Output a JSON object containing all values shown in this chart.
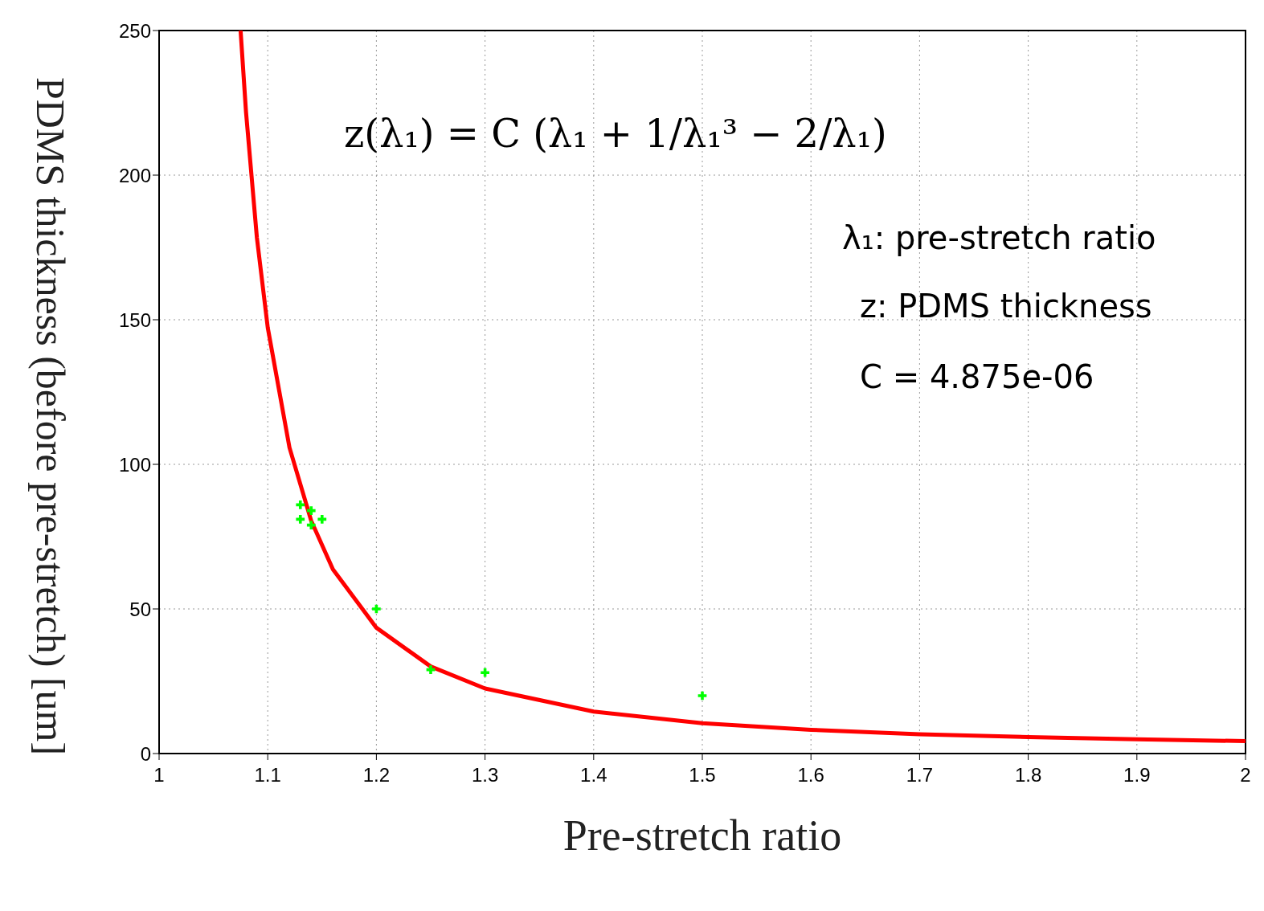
{
  "chart_data": {
    "type": "scatter",
    "xlabel": "Pre-stretch ratio",
    "ylabel": "PDMS thickness (before pre-stretch) [um]",
    "xlim": [
      1,
      2
    ],
    "xticks": [
      1,
      1.1,
      1.2,
      1.3,
      1.4,
      1.5,
      1.6,
      1.7,
      1.8,
      1.9,
      2
    ],
    "ylim": [
      0,
      250
    ],
    "yticks": [
      0,
      50,
      100,
      150,
      200,
      250
    ],
    "grid": true,
    "series": [
      {
        "type": "line",
        "color": "#ff0000",
        "marker": "none",
        "line_style": "solid",
        "x": [
          1.075,
          1.08,
          1.09,
          1.1,
          1.12,
          1.14,
          1.16,
          1.2,
          1.25,
          1.3,
          1.4,
          1.5,
          1.6,
          1.7,
          1.8,
          1.9,
          2
        ],
        "values": [
          250,
          221.8,
          178.4,
          147.3,
          105.8,
          80.5,
          63.7,
          43.5,
          30.1,
          22.5,
          14.5,
          10.5,
          8.2,
          6.7,
          5.7,
          4.9,
          4.3
        ]
      },
      {
        "type": "scatter",
        "color": "#00ff00",
        "marker": "cross",
        "x": [
          1.13,
          1.13,
          1.14,
          1.14,
          1.15,
          1.2,
          1.25,
          1.3,
          1.5
        ],
        "values": [
          86,
          81,
          84,
          79,
          81,
          50,
          29,
          28,
          20
        ]
      }
    ],
    "annotations": [
      "z(λ₁) = C (λ₁ + 1/λ₁³ − 2/λ₁)",
      "λ₁: pre-stretch ratio",
      "z: PDMS thickness",
      "C = 4.875e-06"
    ]
  }
}
